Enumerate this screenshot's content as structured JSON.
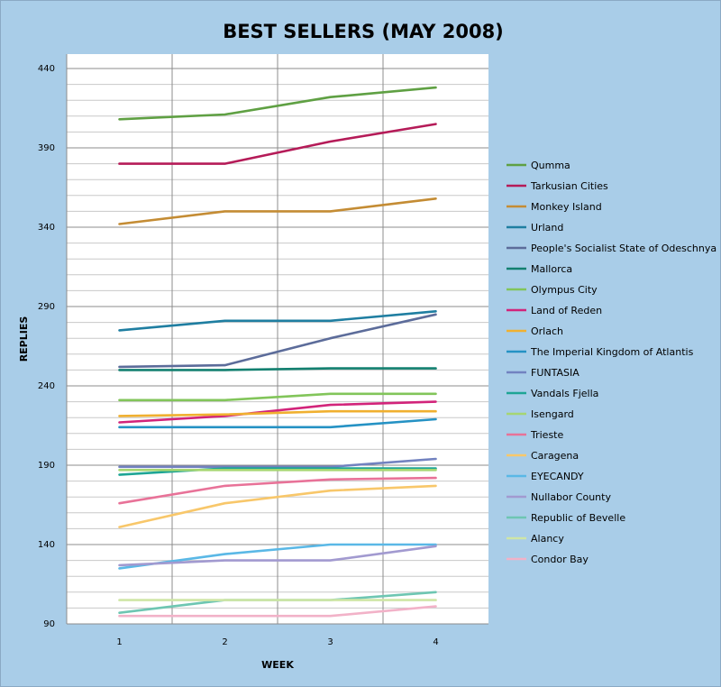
{
  "chart_data": {
    "type": "line",
    "title": "BEST SELLERS (MAY 2008)",
    "xlabel": "WEEK",
    "ylabel": "REPLIES",
    "x": [
      1,
      2,
      3,
      4
    ],
    "ylim": [
      90,
      440
    ],
    "yticks": [
      90,
      140,
      190,
      240,
      290,
      340,
      390,
      440
    ],
    "grid": true,
    "legend_position": "right",
    "series": [
      {
        "name": "Qumma",
        "color": "#5fa043",
        "values": [
          408,
          411,
          422,
          428
        ]
      },
      {
        "name": "Tarkusian Cities",
        "color": "#b51b58",
        "values": [
          380,
          380,
          394,
          405
        ]
      },
      {
        "name": "Monkey Island",
        "color": "#c48c34",
        "values": [
          342,
          350,
          350,
          358
        ]
      },
      {
        "name": "Urland",
        "color": "#1f7ea1",
        "values": [
          275,
          281,
          281,
          287
        ]
      },
      {
        "name": "People's Socialist State of Odeschnya",
        "color": "#5c6c9a",
        "values": [
          252,
          253,
          270,
          285
        ]
      },
      {
        "name": "Mallorca",
        "color": "#138070",
        "values": [
          250,
          250,
          251,
          251
        ]
      },
      {
        "name": "Olympus City",
        "color": "#82c55a",
        "values": [
          231,
          231,
          235,
          235
        ]
      },
      {
        "name": "Land of Reden",
        "color": "#d2247a",
        "values": [
          217,
          221,
          228,
          230
        ]
      },
      {
        "name": "Orlach",
        "color": "#f0b030",
        "values": [
          221,
          222,
          224,
          224
        ]
      },
      {
        "name": "The Imperial Kingdom of Atlantis",
        "color": "#2592c4",
        "values": [
          214,
          214,
          214,
          219
        ]
      },
      {
        "name": "FUNTASIA",
        "color": "#7282c0",
        "values": [
          189,
          189,
          189,
          194
        ]
      },
      {
        "name": "Vandals Fjella",
        "color": "#1ea595",
        "values": [
          184,
          188,
          188,
          188
        ]
      },
      {
        "name": "Isengard",
        "color": "#a6d672",
        "values": [
          187,
          187,
          187,
          187
        ]
      },
      {
        "name": "Trieste",
        "color": "#e87298",
        "values": [
          166,
          177,
          181,
          182
        ]
      },
      {
        "name": "Caragena",
        "color": "#f8c76a",
        "values": [
          151,
          166,
          174,
          177
        ]
      },
      {
        "name": "EYECANDY",
        "color": "#5ab8e6",
        "values": [
          125,
          134,
          140,
          140
        ]
      },
      {
        "name": "Nullabor County",
        "color": "#a29ad0",
        "values": [
          127,
          130,
          130,
          139
        ]
      },
      {
        "name": "Republic of Bevelle",
        "color": "#6ec6b2",
        "values": [
          97,
          105,
          105,
          110
        ]
      },
      {
        "name": "Alancy",
        "color": "#cfe6a6",
        "values": [
          105,
          105,
          105,
          105
        ]
      },
      {
        "name": "Condor Bay",
        "color": "#f2b2c8",
        "values": [
          95,
          95,
          95,
          101
        ]
      }
    ]
  }
}
